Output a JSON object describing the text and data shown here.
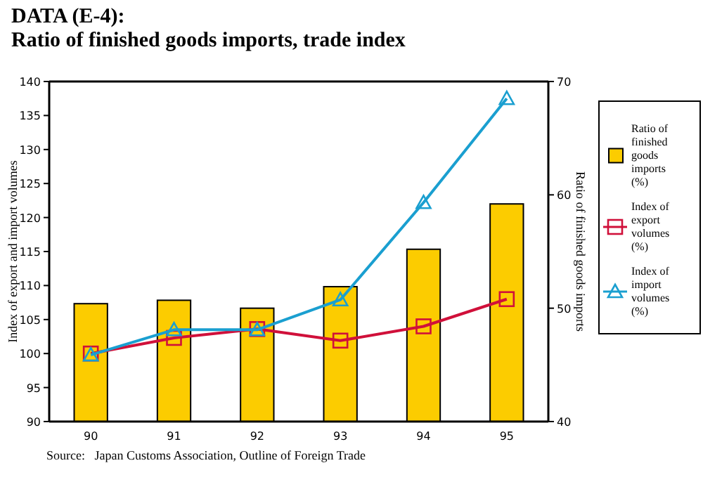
{
  "chart_data": {
    "type": "bar",
    "title": "DATA (E-4):",
    "subtitle": "Ratio of finished goods imports, trade index",
    "categories": [
      "90",
      "91",
      "92",
      "93",
      "94",
      "95"
    ],
    "series": [
      {
        "name": "Ratio of finished goods imports (%)",
        "axis": "y2",
        "color": "#fccc00",
        "values": [
          50.4,
          50.7,
          50.0,
          51.9,
          55.2,
          59.2
        ]
      },
      {
        "name": "Index of export volumes (%)",
        "type": "line",
        "color": "#d0103a",
        "marker": "square",
        "values": [
          100,
          102.3,
          103.6,
          101.9,
          104.0,
          108.0
        ]
      },
      {
        "name": "Index of import volumes (%)",
        "type": "line",
        "color": "#1a9fd0",
        "marker": "triangle",
        "values": [
          99.8,
          103.5,
          103.5,
          107.9,
          122.2,
          137.5
        ]
      }
    ],
    "ylabel": "Index of export and import volumes",
    "y2label": "Ratio of finished goods imports",
    "ylim": [
      90,
      140
    ],
    "yticks": [
      90,
      95,
      100,
      105,
      110,
      115,
      120,
      125,
      130,
      135,
      140
    ],
    "y2lim": [
      40,
      70
    ],
    "y2ticks": [
      40,
      50,
      60,
      70
    ],
    "grid": false,
    "legend": "right",
    "annotations": [
      "Source:   Japan Customs Association, Outline of Foreign Trade"
    ]
  }
}
